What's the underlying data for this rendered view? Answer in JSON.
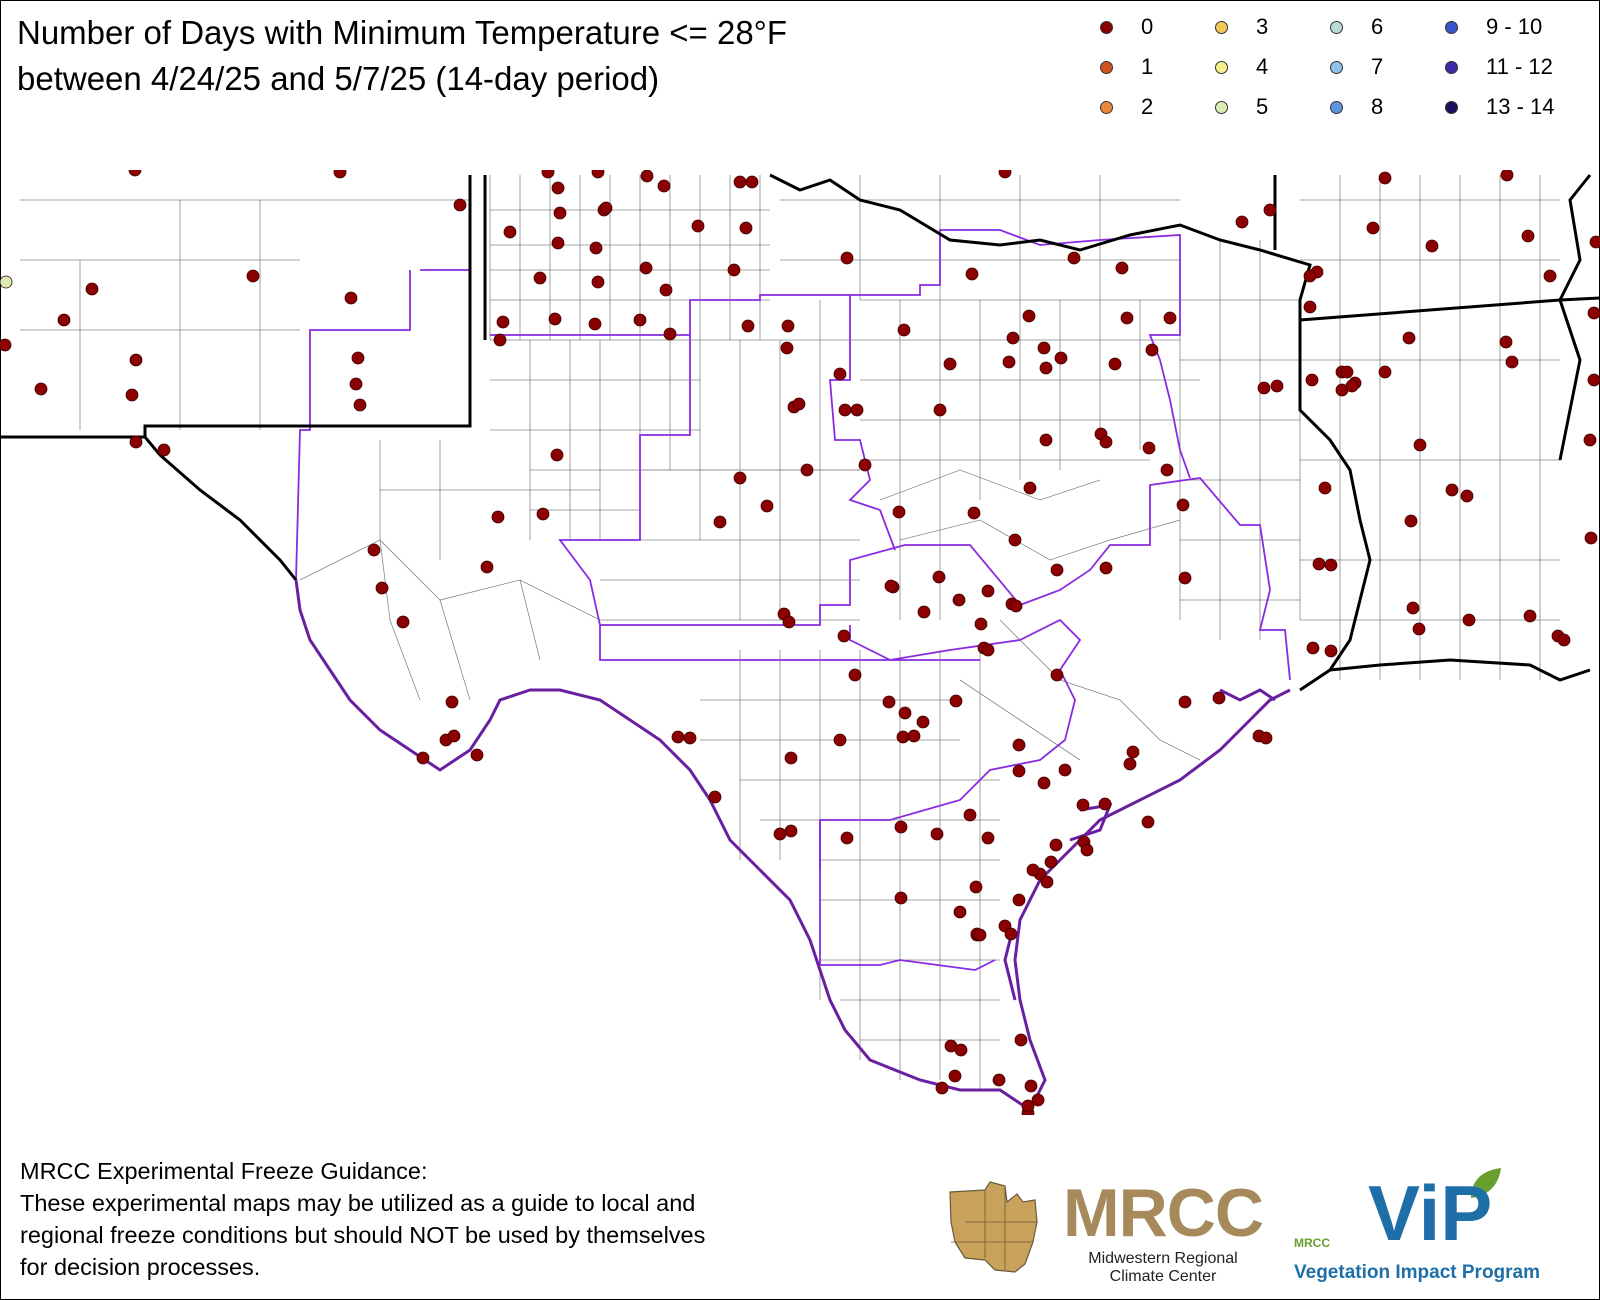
{
  "title": {
    "line1": "Number of Days with Minimum Temperature <= 28°F",
    "line2": "between 4/24/25 and 5/7/25 (14-day period)"
  },
  "legend": [
    {
      "label": "0",
      "color": "#8b0000"
    },
    {
      "label": "1",
      "color": "#d2521f"
    },
    {
      "label": "2",
      "color": "#e8893a"
    },
    {
      "label": "3",
      "color": "#f2c85b"
    },
    {
      "label": "4",
      "color": "#f6f08a"
    },
    {
      "label": "5",
      "color": "#d9edb4"
    },
    {
      "label": "6",
      "color": "#b7dcd6"
    },
    {
      "label": "7",
      "color": "#8fc3ea"
    },
    {
      "label": "8",
      "color": "#5f95dd"
    },
    {
      "label": "9 - 10",
      "color": "#3a55c9"
    },
    {
      "label": "11 - 12",
      "color": "#3a2aa8"
    },
    {
      "label": "13 - 14",
      "color": "#1a1060"
    }
  ],
  "map": {
    "station_value_shown": "0",
    "station_color": "#8b0000",
    "edge_station_color": "#d9edb4",
    "state_border_color": "#000000",
    "climate_division_color": "#8a2be2",
    "county_line_color": "#888888",
    "stations": [
      [
        135,
        170
      ],
      [
        340,
        172
      ],
      [
        548,
        172
      ],
      [
        558,
        188
      ],
      [
        598,
        172
      ],
      [
        647,
        176
      ],
      [
        664,
        186
      ],
      [
        740,
        182
      ],
      [
        752,
        182
      ],
      [
        1005,
        172
      ],
      [
        1385,
        178
      ],
      [
        1507,
        175
      ],
      [
        460,
        205
      ],
      [
        510,
        232
      ],
      [
        560,
        213
      ],
      [
        604,
        210
      ],
      [
        606,
        208
      ],
      [
        698,
        226
      ],
      [
        746,
        228
      ],
      [
        1270,
        210
      ],
      [
        1242,
        222
      ],
      [
        1373,
        228
      ],
      [
        1432,
        246
      ],
      [
        1528,
        236
      ],
      [
        1596,
        242
      ],
      [
        92,
        289
      ],
      [
        253,
        276
      ],
      [
        351,
        298
      ],
      [
        540,
        278
      ],
      [
        558,
        243
      ],
      [
        598,
        282
      ],
      [
        596,
        248
      ],
      [
        646,
        268
      ],
      [
        666,
        290
      ],
      [
        734,
        270
      ],
      [
        847,
        258
      ],
      [
        972,
        274
      ],
      [
        1074,
        258
      ],
      [
        1122,
        268
      ],
      [
        1317,
        272
      ],
      [
        1310,
        276
      ],
      [
        1550,
        276
      ],
      [
        64,
        320
      ],
      [
        503,
        322
      ],
      [
        555,
        319
      ],
      [
        595,
        324
      ],
      [
        640,
        320
      ],
      [
        670,
        334
      ],
      [
        748,
        326
      ],
      [
        788,
        326
      ],
      [
        904,
        330
      ],
      [
        1029,
        316
      ],
      [
        1127,
        318
      ],
      [
        1170,
        318
      ],
      [
        1310,
        307
      ],
      [
        1594,
        313
      ],
      [
        5,
        345
      ],
      [
        136,
        360
      ],
      [
        358,
        358
      ],
      [
        500,
        340
      ],
      [
        787,
        348
      ],
      [
        1013,
        338
      ],
      [
        1044,
        348
      ],
      [
        1061,
        358
      ],
      [
        1115,
        364
      ],
      [
        1009,
        362
      ],
      [
        1046,
        368
      ],
      [
        1152,
        350
      ],
      [
        1409,
        338
      ],
      [
        1506,
        342
      ],
      [
        41,
        389
      ],
      [
        132,
        395
      ],
      [
        356,
        384
      ],
      [
        360,
        405
      ],
      [
        794,
        407
      ],
      [
        799,
        404
      ],
      [
        840,
        374
      ],
      [
        845,
        410
      ],
      [
        857,
        410
      ],
      [
        950,
        364
      ],
      [
        1277,
        386
      ],
      [
        1264,
        388
      ],
      [
        1312,
        380
      ],
      [
        1342,
        372
      ],
      [
        1347,
        372
      ],
      [
        1355,
        383
      ],
      [
        1342,
        390
      ],
      [
        1352,
        386
      ],
      [
        1385,
        372
      ],
      [
        1512,
        362
      ],
      [
        1594,
        380
      ],
      [
        136,
        442
      ],
      [
        164,
        450
      ],
      [
        940,
        410
      ],
      [
        1101,
        434
      ],
      [
        1106,
        442
      ],
      [
        1046,
        440
      ],
      [
        1149,
        448
      ],
      [
        1167,
        470
      ],
      [
        1420,
        445
      ],
      [
        1590,
        440
      ],
      [
        557,
        455
      ],
      [
        740,
        478
      ],
      [
        807,
        470
      ],
      [
        865,
        465
      ],
      [
        1030,
        488
      ],
      [
        1325,
        488
      ],
      [
        1452,
        490
      ],
      [
        1467,
        496
      ],
      [
        498,
        517
      ],
      [
        543,
        514
      ],
      [
        720,
        522
      ],
      [
        767,
        506
      ],
      [
        974,
        513
      ],
      [
        899,
        512
      ],
      [
        1015,
        540
      ],
      [
        1411,
        521
      ],
      [
        374,
        550
      ],
      [
        487,
        567
      ],
      [
        1183,
        505
      ],
      [
        1106,
        568
      ],
      [
        1057,
        570
      ],
      [
        893,
        587
      ],
      [
        1185,
        578
      ],
      [
        1319,
        564
      ],
      [
        1331,
        565
      ],
      [
        1591,
        538
      ],
      [
        382,
        588
      ],
      [
        891,
        586
      ],
      [
        939,
        577
      ],
      [
        988,
        591
      ],
      [
        1012,
        604
      ],
      [
        1016,
        606
      ],
      [
        959,
        600
      ],
      [
        1413,
        608
      ],
      [
        1469,
        620
      ],
      [
        1530,
        616
      ],
      [
        403,
        622
      ],
      [
        784,
        614
      ],
      [
        789,
        622
      ],
      [
        924,
        612
      ],
      [
        981,
        624
      ],
      [
        984,
        648
      ],
      [
        1057,
        675
      ],
      [
        1313,
        648
      ],
      [
        1331,
        651
      ],
      [
        1419,
        629
      ],
      [
        1558,
        636
      ],
      [
        844,
        636
      ],
      [
        855,
        675
      ],
      [
        988,
        650
      ],
      [
        1564,
        640
      ],
      [
        452,
        702
      ],
      [
        889,
        702
      ],
      [
        905,
        713
      ],
      [
        923,
        722
      ],
      [
        956,
        701
      ],
      [
        1185,
        702
      ],
      [
        1219,
        698
      ],
      [
        1259,
        736
      ],
      [
        1266,
        738
      ],
      [
        446,
        740
      ],
      [
        454,
        736
      ],
      [
        477,
        755
      ],
      [
        423,
        758
      ],
      [
        678,
        737
      ],
      [
        690,
        738
      ],
      [
        840,
        740
      ],
      [
        903,
        737
      ],
      [
        914,
        736
      ],
      [
        1019,
        745
      ],
      [
        1133,
        752
      ],
      [
        1130,
        764
      ],
      [
        715,
        797
      ],
      [
        1019,
        771
      ],
      [
        791,
        758
      ],
      [
        1065,
        770
      ],
      [
        1044,
        783
      ],
      [
        791,
        831
      ],
      [
        780,
        834
      ],
      [
        847,
        838
      ],
      [
        901,
        827
      ],
      [
        988,
        838
      ],
      [
        970,
        815
      ],
      [
        937,
        834
      ],
      [
        1083,
        805
      ],
      [
        1105,
        804
      ],
      [
        1148,
        822
      ],
      [
        1056,
        845
      ],
      [
        1084,
        842
      ],
      [
        1051,
        862
      ],
      [
        1040,
        874
      ],
      [
        1033,
        870
      ],
      [
        1087,
        850
      ],
      [
        1047,
        882
      ],
      [
        976,
        887
      ],
      [
        901,
        898
      ],
      [
        960,
        912
      ],
      [
        1019,
        900
      ],
      [
        1005,
        926
      ],
      [
        1011,
        934
      ],
      [
        977,
        935
      ],
      [
        977,
        934
      ],
      [
        980,
        935
      ],
      [
        1021,
        1040
      ],
      [
        951,
        1046
      ],
      [
        961,
        1050
      ],
      [
        955,
        1076
      ],
      [
        942,
        1088
      ],
      [
        999,
        1080
      ],
      [
        1031,
        1086
      ],
      [
        1028,
        1113
      ],
      [
        1028,
        1106
      ],
      [
        1038,
        1100
      ]
    ],
    "edge_stations": [
      [
        6,
        282
      ]
    ]
  },
  "footer": {
    "line1": "MRCC Experimental Freeze Guidance:",
    "line2": "These experimental maps may be utilized as a guide to local and",
    "line3": "regional freeze conditions but should NOT be used by themselves",
    "line4": "for decision processes."
  },
  "logos": {
    "mrcc_name": "MRCC",
    "mrcc_full_line1": "Midwestern Regional",
    "mrcc_full_line2": "Climate Center",
    "vip_name": "ViP",
    "vip_small": "MRCC",
    "vip_full": "Vegetation Impact Program"
  }
}
